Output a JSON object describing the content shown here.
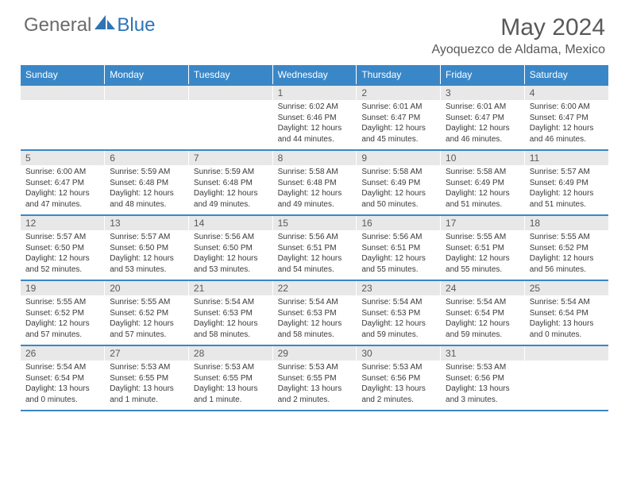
{
  "brand": {
    "part1": "General",
    "part2": "Blue"
  },
  "title": "May 2024",
  "location": "Ayoquezco de Aldama, Mexico",
  "colors": {
    "header_bg": "#3a87c8",
    "header_text": "#ffffff",
    "daynum_bg": "#e8e8e8",
    "text": "#595959",
    "rule": "#3a87c8"
  },
  "weekdays": [
    "Sunday",
    "Monday",
    "Tuesday",
    "Wednesday",
    "Thursday",
    "Friday",
    "Saturday"
  ],
  "weeks": [
    [
      null,
      null,
      null,
      {
        "d": "1",
        "sr": "6:02 AM",
        "ss": "6:46 PM",
        "dl": "12 hours and 44 minutes."
      },
      {
        "d": "2",
        "sr": "6:01 AM",
        "ss": "6:47 PM",
        "dl": "12 hours and 45 minutes."
      },
      {
        "d": "3",
        "sr": "6:01 AM",
        "ss": "6:47 PM",
        "dl": "12 hours and 46 minutes."
      },
      {
        "d": "4",
        "sr": "6:00 AM",
        "ss": "6:47 PM",
        "dl": "12 hours and 46 minutes."
      }
    ],
    [
      {
        "d": "5",
        "sr": "6:00 AM",
        "ss": "6:47 PM",
        "dl": "12 hours and 47 minutes."
      },
      {
        "d": "6",
        "sr": "5:59 AM",
        "ss": "6:48 PM",
        "dl": "12 hours and 48 minutes."
      },
      {
        "d": "7",
        "sr": "5:59 AM",
        "ss": "6:48 PM",
        "dl": "12 hours and 49 minutes."
      },
      {
        "d": "8",
        "sr": "5:58 AM",
        "ss": "6:48 PM",
        "dl": "12 hours and 49 minutes."
      },
      {
        "d": "9",
        "sr": "5:58 AM",
        "ss": "6:49 PM",
        "dl": "12 hours and 50 minutes."
      },
      {
        "d": "10",
        "sr": "5:58 AM",
        "ss": "6:49 PM",
        "dl": "12 hours and 51 minutes."
      },
      {
        "d": "11",
        "sr": "5:57 AM",
        "ss": "6:49 PM",
        "dl": "12 hours and 51 minutes."
      }
    ],
    [
      {
        "d": "12",
        "sr": "5:57 AM",
        "ss": "6:50 PM",
        "dl": "12 hours and 52 minutes."
      },
      {
        "d": "13",
        "sr": "5:57 AM",
        "ss": "6:50 PM",
        "dl": "12 hours and 53 minutes."
      },
      {
        "d": "14",
        "sr": "5:56 AM",
        "ss": "6:50 PM",
        "dl": "12 hours and 53 minutes."
      },
      {
        "d": "15",
        "sr": "5:56 AM",
        "ss": "6:51 PM",
        "dl": "12 hours and 54 minutes."
      },
      {
        "d": "16",
        "sr": "5:56 AM",
        "ss": "6:51 PM",
        "dl": "12 hours and 55 minutes."
      },
      {
        "d": "17",
        "sr": "5:55 AM",
        "ss": "6:51 PM",
        "dl": "12 hours and 55 minutes."
      },
      {
        "d": "18",
        "sr": "5:55 AM",
        "ss": "6:52 PM",
        "dl": "12 hours and 56 minutes."
      }
    ],
    [
      {
        "d": "19",
        "sr": "5:55 AM",
        "ss": "6:52 PM",
        "dl": "12 hours and 57 minutes."
      },
      {
        "d": "20",
        "sr": "5:55 AM",
        "ss": "6:52 PM",
        "dl": "12 hours and 57 minutes."
      },
      {
        "d": "21",
        "sr": "5:54 AM",
        "ss": "6:53 PM",
        "dl": "12 hours and 58 minutes."
      },
      {
        "d": "22",
        "sr": "5:54 AM",
        "ss": "6:53 PM",
        "dl": "12 hours and 58 minutes."
      },
      {
        "d": "23",
        "sr": "5:54 AM",
        "ss": "6:53 PM",
        "dl": "12 hours and 59 minutes."
      },
      {
        "d": "24",
        "sr": "5:54 AM",
        "ss": "6:54 PM",
        "dl": "12 hours and 59 minutes."
      },
      {
        "d": "25",
        "sr": "5:54 AM",
        "ss": "6:54 PM",
        "dl": "13 hours and 0 minutes."
      }
    ],
    [
      {
        "d": "26",
        "sr": "5:54 AM",
        "ss": "6:54 PM",
        "dl": "13 hours and 0 minutes."
      },
      {
        "d": "27",
        "sr": "5:53 AM",
        "ss": "6:55 PM",
        "dl": "13 hours and 1 minute."
      },
      {
        "d": "28",
        "sr": "5:53 AM",
        "ss": "6:55 PM",
        "dl": "13 hours and 1 minute."
      },
      {
        "d": "29",
        "sr": "5:53 AM",
        "ss": "6:55 PM",
        "dl": "13 hours and 2 minutes."
      },
      {
        "d": "30",
        "sr": "5:53 AM",
        "ss": "6:56 PM",
        "dl": "13 hours and 2 minutes."
      },
      {
        "d": "31",
        "sr": "5:53 AM",
        "ss": "6:56 PM",
        "dl": "13 hours and 3 minutes."
      },
      null
    ]
  ],
  "labels": {
    "sunrise": "Sunrise:",
    "sunset": "Sunset:",
    "daylight": "Daylight:"
  }
}
